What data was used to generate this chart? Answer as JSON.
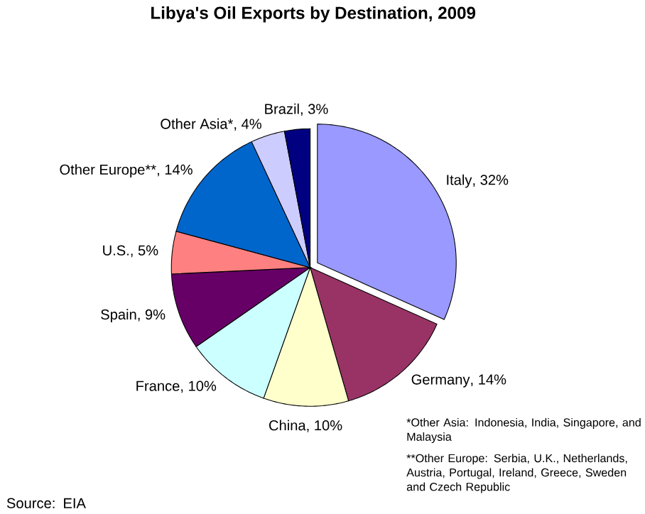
{
  "chart_data": {
    "type": "pie",
    "title": "Libya's Oil Exports by Destination, 2009",
    "categories": [
      "Italy",
      "Germany",
      "China",
      "France",
      "Spain",
      "U.S.",
      "Other Europe**",
      "Other Asia*",
      "Brazil"
    ],
    "values": [
      32,
      14,
      10,
      10,
      9,
      5,
      14,
      4,
      3
    ],
    "value_labels": [
      ", 32%",
      ", 14%",
      ", 10%",
      ", 10%",
      ", 9%",
      ", 5%",
      ", 14%",
      ", 4%",
      ", 3%"
    ],
    "colors": [
      "#9999ff",
      "#993366",
      "#ffffcc",
      "#ccffff",
      "#660066",
      "#ff8080",
      "#0066cc",
      "#ccccff",
      "#000080"
    ],
    "annotations": [
      "Source: EIA",
      "*Other Asia: Indonesia, India, Singapore, and Malaysia",
      "**Other Europe: Serbia, U.K., Netherlands, Austria, Portugal, Ireland, Greece, Sweden and Czech Republic"
    ]
  }
}
